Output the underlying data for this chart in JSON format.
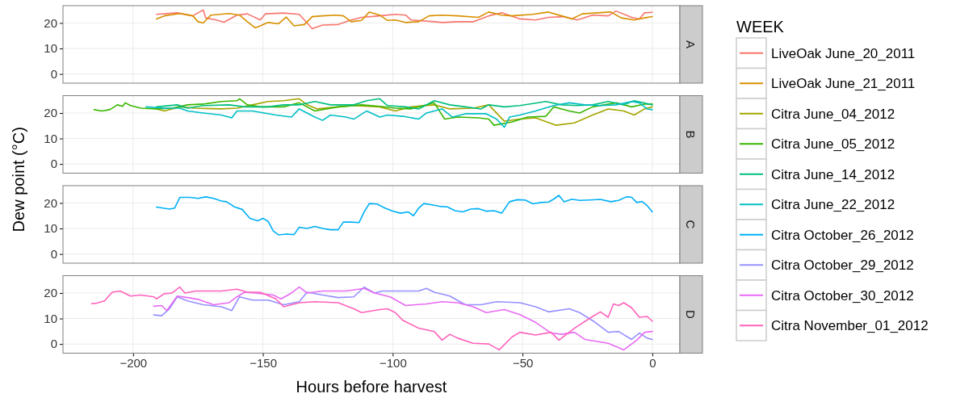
{
  "chart_data": [
    {
      "type": "line",
      "title": "A",
      "ylabel": "Dew point (°C)",
      "legend_title": "WEEK",
      "legend": "right",
      "grid": true,
      "tick_labels": "y",
      "line_style": "solid",
      "marker": "none",
      "xlim": [
        -227,
        10.6
      ],
      "ylim": [
        -3.6,
        26.8
      ],
      "xticks": [
        -200,
        -150,
        -100,
        -50,
        0
      ],
      "yticks": [
        0,
        10,
        20
      ],
      "series": [
        {
          "name": "LiveOak June_20_2011",
          "color": "#f8766d",
          "x": [
            -191,
            -183,
            -177,
            -173,
            -172,
            -168,
            -165,
            -160,
            -156,
            -151,
            -149,
            -142,
            -136,
            -131,
            -127,
            -121,
            -116,
            -112,
            -105,
            -99,
            -95,
            -93,
            -84,
            -81,
            -75,
            -69,
            -63,
            -58,
            -51,
            -45,
            -40,
            -34,
            -29,
            -23,
            -17,
            -14,
            -8,
            -5,
            -3,
            0
          ],
          "values": [
            23.4,
            24,
            22.8,
            25.1,
            22,
            21.2,
            20.3,
            23.1,
            23.6,
            21.2,
            23.6,
            23.9,
            23.4,
            17.8,
            19.2,
            19.4,
            21.2,
            22.2,
            22.8,
            23.4,
            23.1,
            21.2,
            20.5,
            20.2,
            20.5,
            20.5,
            22.8,
            24,
            21.6,
            21.2,
            22.2,
            22.5,
            21.2,
            23.1,
            22.8,
            24.7,
            22.2,
            21.6,
            24,
            24.2
          ]
        },
        {
          "name": "LiveOak June_21_2011",
          "color": "#d89000",
          "x": [
            -191,
            -188,
            -182,
            -177,
            -175,
            -173,
            -170,
            -163,
            -159,
            -156,
            -153,
            -151,
            -148,
            -144,
            -141,
            -138,
            -134,
            -131,
            -127,
            -122,
            -119,
            -116,
            -112,
            -109,
            -105,
            -102,
            -99,
            -95,
            -90,
            -86,
            -81,
            -75,
            -67,
            -63,
            -58,
            -54,
            -46,
            -40,
            -35,
            -31,
            -27,
            -21,
            -16,
            -12,
            -7,
            -3,
            0
          ],
          "values": [
            21.6,
            22.8,
            23.7,
            22.8,
            20.5,
            20,
            23.1,
            23.7,
            23.1,
            20.5,
            18.1,
            18.9,
            20.2,
            19.7,
            22.3,
            18.9,
            19.4,
            22.5,
            22.8,
            23.1,
            22.8,
            20.5,
            21,
            24.3,
            23.1,
            21,
            21.2,
            20.2,
            20.5,
            22.8,
            23.1,
            22.8,
            22.2,
            24.3,
            23.1,
            22.8,
            23.4,
            24.3,
            22.8,
            21.6,
            23.6,
            24,
            24.3,
            22,
            21.2,
            22,
            22.5
          ]
        }
      ]
    },
    {
      "type": "line",
      "title": "B",
      "legend": "right",
      "grid": true,
      "tick_labels": "y",
      "line_style": "solid",
      "marker": "none",
      "xlim": [
        -227,
        10.6
      ],
      "ylim": [
        -3.6,
        26.8
      ],
      "xticks": [
        -200,
        -150,
        -100,
        -50,
        0
      ],
      "yticks": [
        0,
        10,
        20
      ],
      "series": [
        {
          "name": "Citra June_04_2012",
          "color": "#a3a500",
          "x": [
            -191,
            -188,
            -182,
            -176,
            -166,
            -160,
            -154,
            -148,
            -142,
            -136,
            -133,
            -129,
            -121,
            -115,
            -105,
            -99,
            -93,
            -84,
            -78,
            -69,
            -63,
            -57,
            -51,
            -45,
            -37,
            -30,
            -23,
            -17,
            -11,
            -7,
            -3,
            0
          ],
          "values": [
            21.6,
            20.8,
            22.4,
            21.9,
            21.6,
            21.9,
            23.2,
            24.5,
            24.8,
            25.6,
            23.2,
            21.6,
            22.4,
            22.9,
            22.4,
            20.8,
            22.4,
            23.2,
            21.6,
            21.9,
            23.2,
            16.8,
            17.6,
            18.1,
            15.2,
            16.1,
            19.2,
            21.6,
            20.8,
            19.2,
            21.6,
            22.4
          ]
        },
        {
          "name": "Citra June_05_2012",
          "color": "#39b600",
          "x": [
            -215,
            -212,
            -209,
            -206,
            -204,
            -203,
            -201,
            -197,
            -191,
            -185,
            -179,
            -173,
            -166,
            -160,
            -159,
            -156,
            -151,
            -142,
            -136,
            -130,
            -121,
            -112,
            -105,
            -99,
            -93,
            -84,
            -80,
            -75,
            -67,
            -63,
            -61,
            -54,
            -48,
            -41,
            -38,
            -32,
            -28,
            -23,
            -14,
            -8,
            -3,
            0
          ],
          "values": [
            21.3,
            20.8,
            21.3,
            23.2,
            22.6,
            24,
            22.9,
            21.9,
            21.6,
            21.9,
            23.2,
            23.5,
            24.5,
            24.8,
            25.6,
            23.2,
            22.4,
            22.4,
            24,
            20.8,
            22.4,
            23.2,
            22.6,
            21.9,
            21.6,
            24,
            17.6,
            18.4,
            18.1,
            17.6,
            15.2,
            16.5,
            18.4,
            18.7,
            22.4,
            20.8,
            20,
            22.4,
            24,
            22.4,
            23.5,
            23.5
          ]
        },
        {
          "name": "Citra June_14_2012",
          "color": "#00bf7d",
          "x": [
            -191,
            -183,
            -179,
            -173,
            -163,
            -157,
            -148,
            -142,
            -136,
            -130,
            -124,
            -115,
            -110,
            -105,
            -102,
            -95,
            -90,
            -84,
            -78,
            -72,
            -66,
            -63,
            -57,
            -51,
            -41,
            -35,
            -29,
            -23,
            -17,
            -11,
            -7,
            0
          ],
          "values": [
            22.4,
            23.2,
            21.9,
            22.9,
            23.2,
            22.4,
            22.4,
            23.2,
            23.2,
            24.5,
            23.2,
            23.2,
            24.8,
            25.6,
            22.9,
            22.4,
            21.6,
            24.8,
            23.2,
            22.4,
            21.6,
            23.2,
            22.4,
            22.9,
            24.5,
            23.2,
            22.9,
            23.2,
            24.5,
            23.2,
            24.8,
            23.2
          ]
        },
        {
          "name": "Citra June_22_2012",
          "color": "#00bfc4",
          "x": [
            -195,
            -188,
            -182,
            -179,
            -173,
            -166,
            -162,
            -160,
            -154,
            -145,
            -139,
            -136,
            -130,
            -127,
            -124,
            -118,
            -115,
            -110,
            -105,
            -102,
            -96,
            -90,
            -87,
            -81,
            -77,
            -72,
            -64,
            -60,
            -57,
            -55,
            -51,
            -45,
            -38,
            -32,
            -26,
            -20,
            -14,
            -8,
            -5,
            -2,
            0
          ],
          "values": [
            22.4,
            21.9,
            21.9,
            20.8,
            20,
            19.2,
            18.1,
            20.8,
            20.8,
            19.2,
            18.4,
            21.6,
            18.4,
            17.1,
            19.2,
            18.4,
            17.6,
            20.8,
            18.4,
            19.2,
            18.7,
            17.6,
            20,
            21.6,
            18.4,
            19.7,
            19.7,
            17.6,
            14.4,
            18.4,
            19.2,
            20.8,
            22.9,
            24,
            23.2,
            22.9,
            23.2,
            24.5,
            24,
            21.6,
            21.3
          ]
        }
      ]
    },
    {
      "type": "line",
      "title": "C",
      "legend": "right",
      "grid": true,
      "tick_labels": "y",
      "line_style": "solid",
      "marker": "none",
      "xlim": [
        -227,
        10.6
      ],
      "ylim": [
        -3.6,
        26.8
      ],
      "xticks": [
        -200,
        -150,
        -100,
        -50,
        0
      ],
      "yticks": [
        0,
        10,
        20
      ],
      "series": [
        {
          "name": "Citra October_26_2012",
          "color": "#00b0f6",
          "x": [
            -191,
            -186,
            -184,
            -182,
            -178,
            -175,
            -172,
            -169,
            -166,
            -164,
            -161,
            -158,
            -155,
            -152,
            -150,
            -148,
            -146,
            -144,
            -141,
            -138,
            -136,
            -133,
            -130,
            -127,
            -124,
            -121,
            -119,
            -116,
            -113,
            -111,
            -109,
            -106,
            -103,
            -100,
            -97,
            -94,
            -92,
            -90,
            -88,
            -85,
            -82,
            -79,
            -76,
            -73,
            -70,
            -67,
            -64,
            -61,
            -58,
            -55,
            -52,
            -49,
            -46,
            -43,
            -40,
            -38,
            -36,
            -34,
            -31,
            -28,
            -24,
            -20,
            -16,
            -13,
            -10,
            -8,
            -6,
            -4,
            -2,
            0
          ],
          "values": [
            18.4,
            17.6,
            18,
            22.2,
            22.2,
            21.8,
            22.4,
            21.8,
            20.8,
            20.5,
            18.5,
            17.5,
            14,
            13,
            14,
            12.8,
            9,
            7.5,
            7.8,
            7.6,
            10.5,
            10,
            10.8,
            10,
            9.5,
            9.5,
            12.5,
            12.5,
            12.3,
            16.5,
            19.8,
            19.6,
            18,
            16.8,
            16,
            16.5,
            15,
            18,
            19.8,
            19.3,
            18.7,
            18.5,
            17,
            16.5,
            17.6,
            17.8,
            16.8,
            17,
            16,
            20.5,
            21.3,
            21.2,
            19.7,
            20.2,
            20.4,
            21.5,
            23,
            20.5,
            21.5,
            21,
            21.2,
            21.4,
            20.5,
            21,
            22.4,
            22.3,
            20.2,
            20.6,
            19,
            16.5
          ]
        }
      ]
    },
    {
      "type": "line",
      "title": "D",
      "xlabel": "Hours before harvest",
      "legend": "right",
      "grid": true,
      "line_style": "solid",
      "marker": "none",
      "xlim": [
        -227,
        10.6
      ],
      "ylim": [
        -3.6,
        26.8
      ],
      "xticks": [
        {
          "value": -200,
          "label": "−200"
        },
        {
          "value": -150,
          "label": "−150"
        },
        {
          "value": -100,
          "label": "−100"
        },
        {
          "value": -50,
          "label": "−50"
        },
        0
      ],
      "yticks": [
        0,
        10,
        20
      ],
      "series": [
        {
          "name": "Citra October_29_2012",
          "color": "#9590ff",
          "x": [
            -192,
            -189,
            -186,
            -183,
            -179,
            -173,
            -166,
            -162,
            -159,
            -154,
            -148,
            -142,
            -136,
            -133,
            -127,
            -121,
            -115,
            -111,
            -107,
            -104,
            -96,
            -90,
            -87,
            -84,
            -78,
            -72,
            -66,
            -60,
            -51,
            -45,
            -40,
            -32,
            -28,
            -22,
            -17,
            -13,
            -8,
            -5,
            -2,
            0
          ],
          "values": [
            11.4,
            11.1,
            13.8,
            18.5,
            16.9,
            15.4,
            14.6,
            13.1,
            18.5,
            17.2,
            17.2,
            15.4,
            16.6,
            20.3,
            19.2,
            18.2,
            18.5,
            22.3,
            20,
            20.8,
            20.8,
            20.8,
            21.8,
            20.3,
            18.8,
            15.4,
            15.4,
            16.6,
            16.2,
            14.6,
            12.6,
            13.8,
            12.3,
            8.5,
            4.6,
            4.9,
            1.8,
            4.3,
            2.3,
            1.8
          ]
        },
        {
          "name": "Citra October_30_2012",
          "color": "#e76bf3",
          "x": [
            -192,
            -189,
            -187,
            -183,
            -179,
            -175,
            -169,
            -163,
            -160,
            -157,
            -153,
            -146,
            -143,
            -139,
            -136,
            -133,
            -127,
            -118,
            -111,
            -107,
            -101,
            -95,
            -87,
            -81,
            -75,
            -69,
            -64,
            -57,
            -51,
            -45,
            -39,
            -35,
            -30,
            -26,
            -17,
            -11,
            -6,
            -3,
            0
          ],
          "values": [
            14.8,
            15.1,
            13.1,
            18.8,
            18.2,
            17.5,
            15.4,
            16.2,
            18.5,
            20.3,
            20,
            19.2,
            17.7,
            20,
            22.3,
            20,
            20.8,
            20.8,
            21.8,
            20,
            18.5,
            15.1,
            15.7,
            16.6,
            16.2,
            14.6,
            12.3,
            13.5,
            11.5,
            8.5,
            4.3,
            3.8,
            4.6,
            1.8,
            0.3,
            -2.3,
            1.5,
            4.6,
            4.9
          ]
        },
        {
          "name": "Citra November_01_2012",
          "color": "#ff62bc",
          "x": [
            -216,
            -214,
            -211,
            -208,
            -205,
            -201,
            -197,
            -192,
            -191,
            -188,
            -185,
            -182,
            -180,
            -176,
            -166,
            -160,
            -156,
            -151,
            -145,
            -142,
            -136,
            -130,
            -121,
            -115,
            -112,
            -105,
            -102,
            -99,
            -96,
            -90,
            -84,
            -81,
            -78,
            -75,
            -69,
            -63,
            -59,
            -54,
            -51,
            -45,
            -39,
            -36,
            -30,
            -23,
            -20,
            -17,
            -15,
            -13,
            -11,
            -8,
            -5,
            -2,
            0
          ],
          "values": [
            15.8,
            16,
            16.9,
            20.3,
            20.8,
            18.8,
            19.2,
            18.5,
            17.7,
            19.7,
            20,
            22.3,
            20,
            20.8,
            20.8,
            21.5,
            20.3,
            20.3,
            17.7,
            14.6,
            16.2,
            16.6,
            16.2,
            13.8,
            12.3,
            13.5,
            13.8,
            12.3,
            9.2,
            6.2,
            4.9,
            1.5,
            3.8,
            2.3,
            0.3,
            0,
            -2.3,
            2.8,
            4.6,
            3.5,
            4.6,
            1.5,
            6.2,
            10.8,
            12.6,
            10.5,
            15.7,
            15.1,
            16.2,
            14.2,
            10.5,
            10.8,
            8.9
          ]
        }
      ]
    }
  ]
}
